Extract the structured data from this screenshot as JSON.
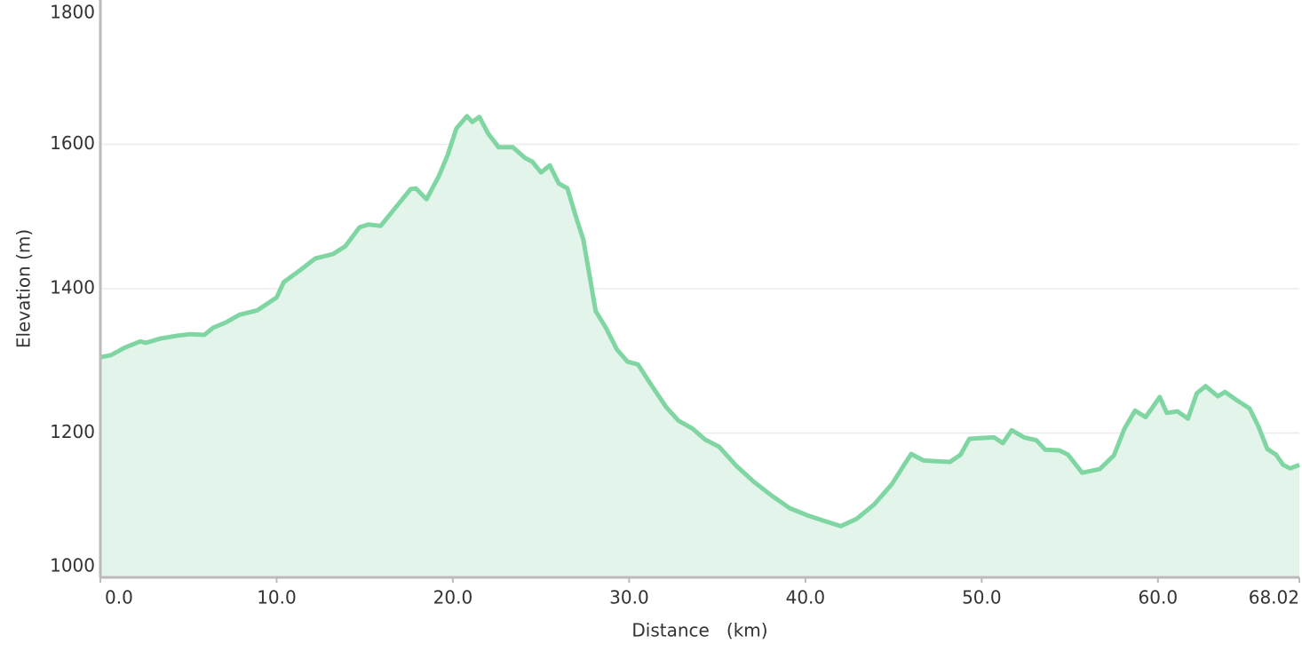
{
  "chart_data": {
    "type": "area",
    "x_label": "Distance   (km)",
    "y_label": "Elevation (m)",
    "xlim": [
      0,
      68.02
    ],
    "ylim": [
      1000,
      1800
    ],
    "xticks": [
      {
        "value": 0,
        "label": "0.0"
      },
      {
        "value": 10,
        "label": "10.0"
      },
      {
        "value": 20,
        "label": "20.0"
      },
      {
        "value": 30,
        "label": "30.0"
      },
      {
        "value": 40,
        "label": "40.0"
      },
      {
        "value": 50,
        "label": "50.0"
      },
      {
        "value": 60,
        "label": "60.0"
      },
      68.02
    ],
    "yticks": [
      1000,
      1200,
      1400,
      1600,
      1800
    ],
    "grid": true,
    "color": "#80d6a2",
    "fill": "#e3f5ea",
    "x": [
      0,
      0.6,
      1.36,
      2.26,
      2.6,
      3.4,
      4.4,
      5.1,
      5.9,
      6.4,
      7.1,
      7.9,
      8.9,
      9.4,
      10.0,
      10.4,
      11.4,
      12.2,
      13.2,
      13.9,
      14.7,
      15.2,
      15.9,
      16.7,
      17.6,
      17.9,
      18.5,
      19.2,
      19.7,
      20.2,
      20.8,
      21.1,
      21.5,
      22.0,
      22.6,
      23.4,
      24.1,
      24.5,
      25.0,
      25.5,
      26.0,
      26.5,
      27.0,
      27.4,
      27.8,
      28.1,
      28.7,
      29.3,
      29.9,
      30.5,
      31.3,
      32.1,
      32.8,
      33.6,
      34.3,
      35.1,
      36.1,
      37.1,
      38.1,
      39.1,
      40.1,
      41.1,
      42.0,
      42.9,
      43.9,
      44.9,
      45.6,
      46.0,
      46.7,
      47.4,
      48.2,
      48.8,
      49.3,
      49.9,
      50.7,
      51.2,
      51.7,
      52.4,
      53.1,
      53.6,
      54.4,
      54.9,
      55.7,
      56.7,
      57.5,
      58.1,
      58.7,
      59.3,
      59.7,
      60.1,
      60.5,
      61.1,
      61.7,
      62.2,
      62.7,
      63.4,
      63.8,
      64.5,
      65.2,
      65.7,
      66.2,
      66.7,
      67.1,
      67.5,
      68.02
    ],
    "values": [
      1305,
      1308,
      1318,
      1327,
      1325,
      1331,
      1335,
      1337,
      1336,
      1346,
      1353,
      1364,
      1370,
      1378,
      1388,
      1409,
      1427,
      1442,
      1448,
      1459,
      1485,
      1489,
      1487,
      1511,
      1538,
      1539,
      1524,
      1556,
      1585,
      1622,
      1639,
      1631,
      1638,
      1615,
      1596,
      1596,
      1581,
      1576,
      1561,
      1571,
      1546,
      1539,
      1498,
      1468,
      1412,
      1369,
      1345,
      1316,
      1299,
      1295,
      1265,
      1236,
      1217,
      1206,
      1191,
      1181,
      1154,
      1132,
      1113,
      1096,
      1086,
      1078,
      1071,
      1081,
      1101,
      1129,
      1156,
      1171,
      1162,
      1161,
      1160,
      1170,
      1192,
      1193,
      1194,
      1186,
      1204,
      1194,
      1190,
      1177,
      1176,
      1170,
      1145,
      1150,
      1169,
      1206,
      1231,
      1222,
      1236,
      1250,
      1228,
      1230,
      1220,
      1255,
      1265,
      1251,
      1257,
      1245,
      1234,
      1209,
      1178,
      1170,
      1156,
      1151,
      1156
    ]
  }
}
